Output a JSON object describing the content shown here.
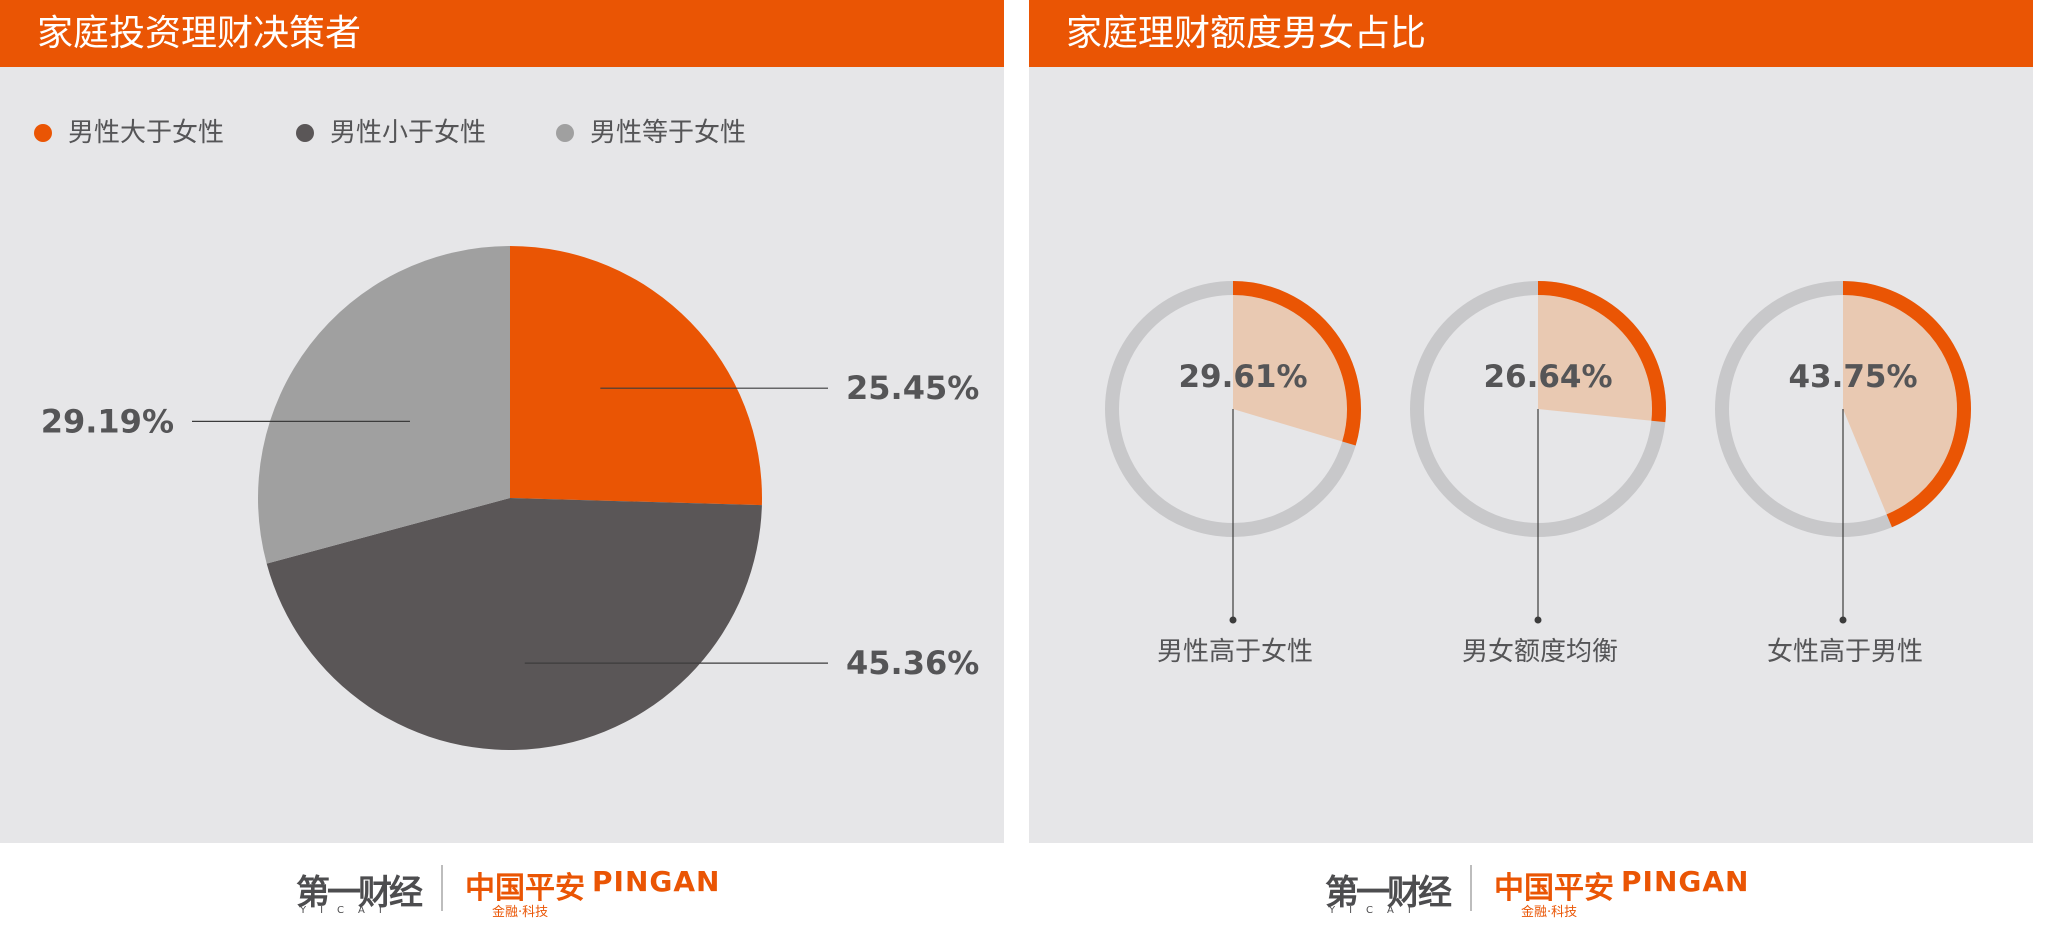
{
  "colors": {
    "orange": "#ea5504",
    "dark_gray": "#5a5657",
    "light_gray": "#a0a0a0",
    "ring_gray": "#c8c8ca",
    "light_orange": "#e9c9b2",
    "background": "#e6e6e8",
    "text": "#555557"
  },
  "left_panel": {
    "title": "家庭投资理财决策者",
    "legend": [
      {
        "label": "男性大于女性",
        "color": "#ea5504"
      },
      {
        "label": "男性小于女性",
        "color": "#5a5657"
      },
      {
        "label": "男性等于女性",
        "color": "#a0a0a0"
      }
    ]
  },
  "right_panel": {
    "title": "家庭理财额度男女占比"
  },
  "chart_data": [
    {
      "type": "pie",
      "title": "家庭投资理财决策者",
      "categories": [
        "男性大于女性",
        "男性小于女性",
        "男性等于女性"
      ],
      "values": [
        25.45,
        45.36,
        29.19
      ],
      "value_labels": [
        "25.45%",
        "45.36%",
        "29.19%"
      ],
      "colors": [
        "#ea5504",
        "#5a5657",
        "#a0a0a0"
      ],
      "legend_position": "top-left"
    },
    {
      "type": "pie",
      "title": "家庭理财额度男女占比",
      "categories": [
        "男性高于女性",
        "男女额度均衡",
        "女性高于男性"
      ],
      "values": [
        29.61,
        26.64,
        43.75
      ],
      "value_labels": [
        "29.61%",
        "26.64%",
        "43.75%"
      ],
      "colors": [
        "#ea5504",
        "#ea5504",
        "#ea5504"
      ]
    }
  ],
  "footer": {
    "yicai_logo": "第一财经",
    "yicai_sub": "YICAI",
    "pingan_logo": "中国平安",
    "pingan_en": "PINGAN",
    "pingan_sub": "金融·科技"
  }
}
